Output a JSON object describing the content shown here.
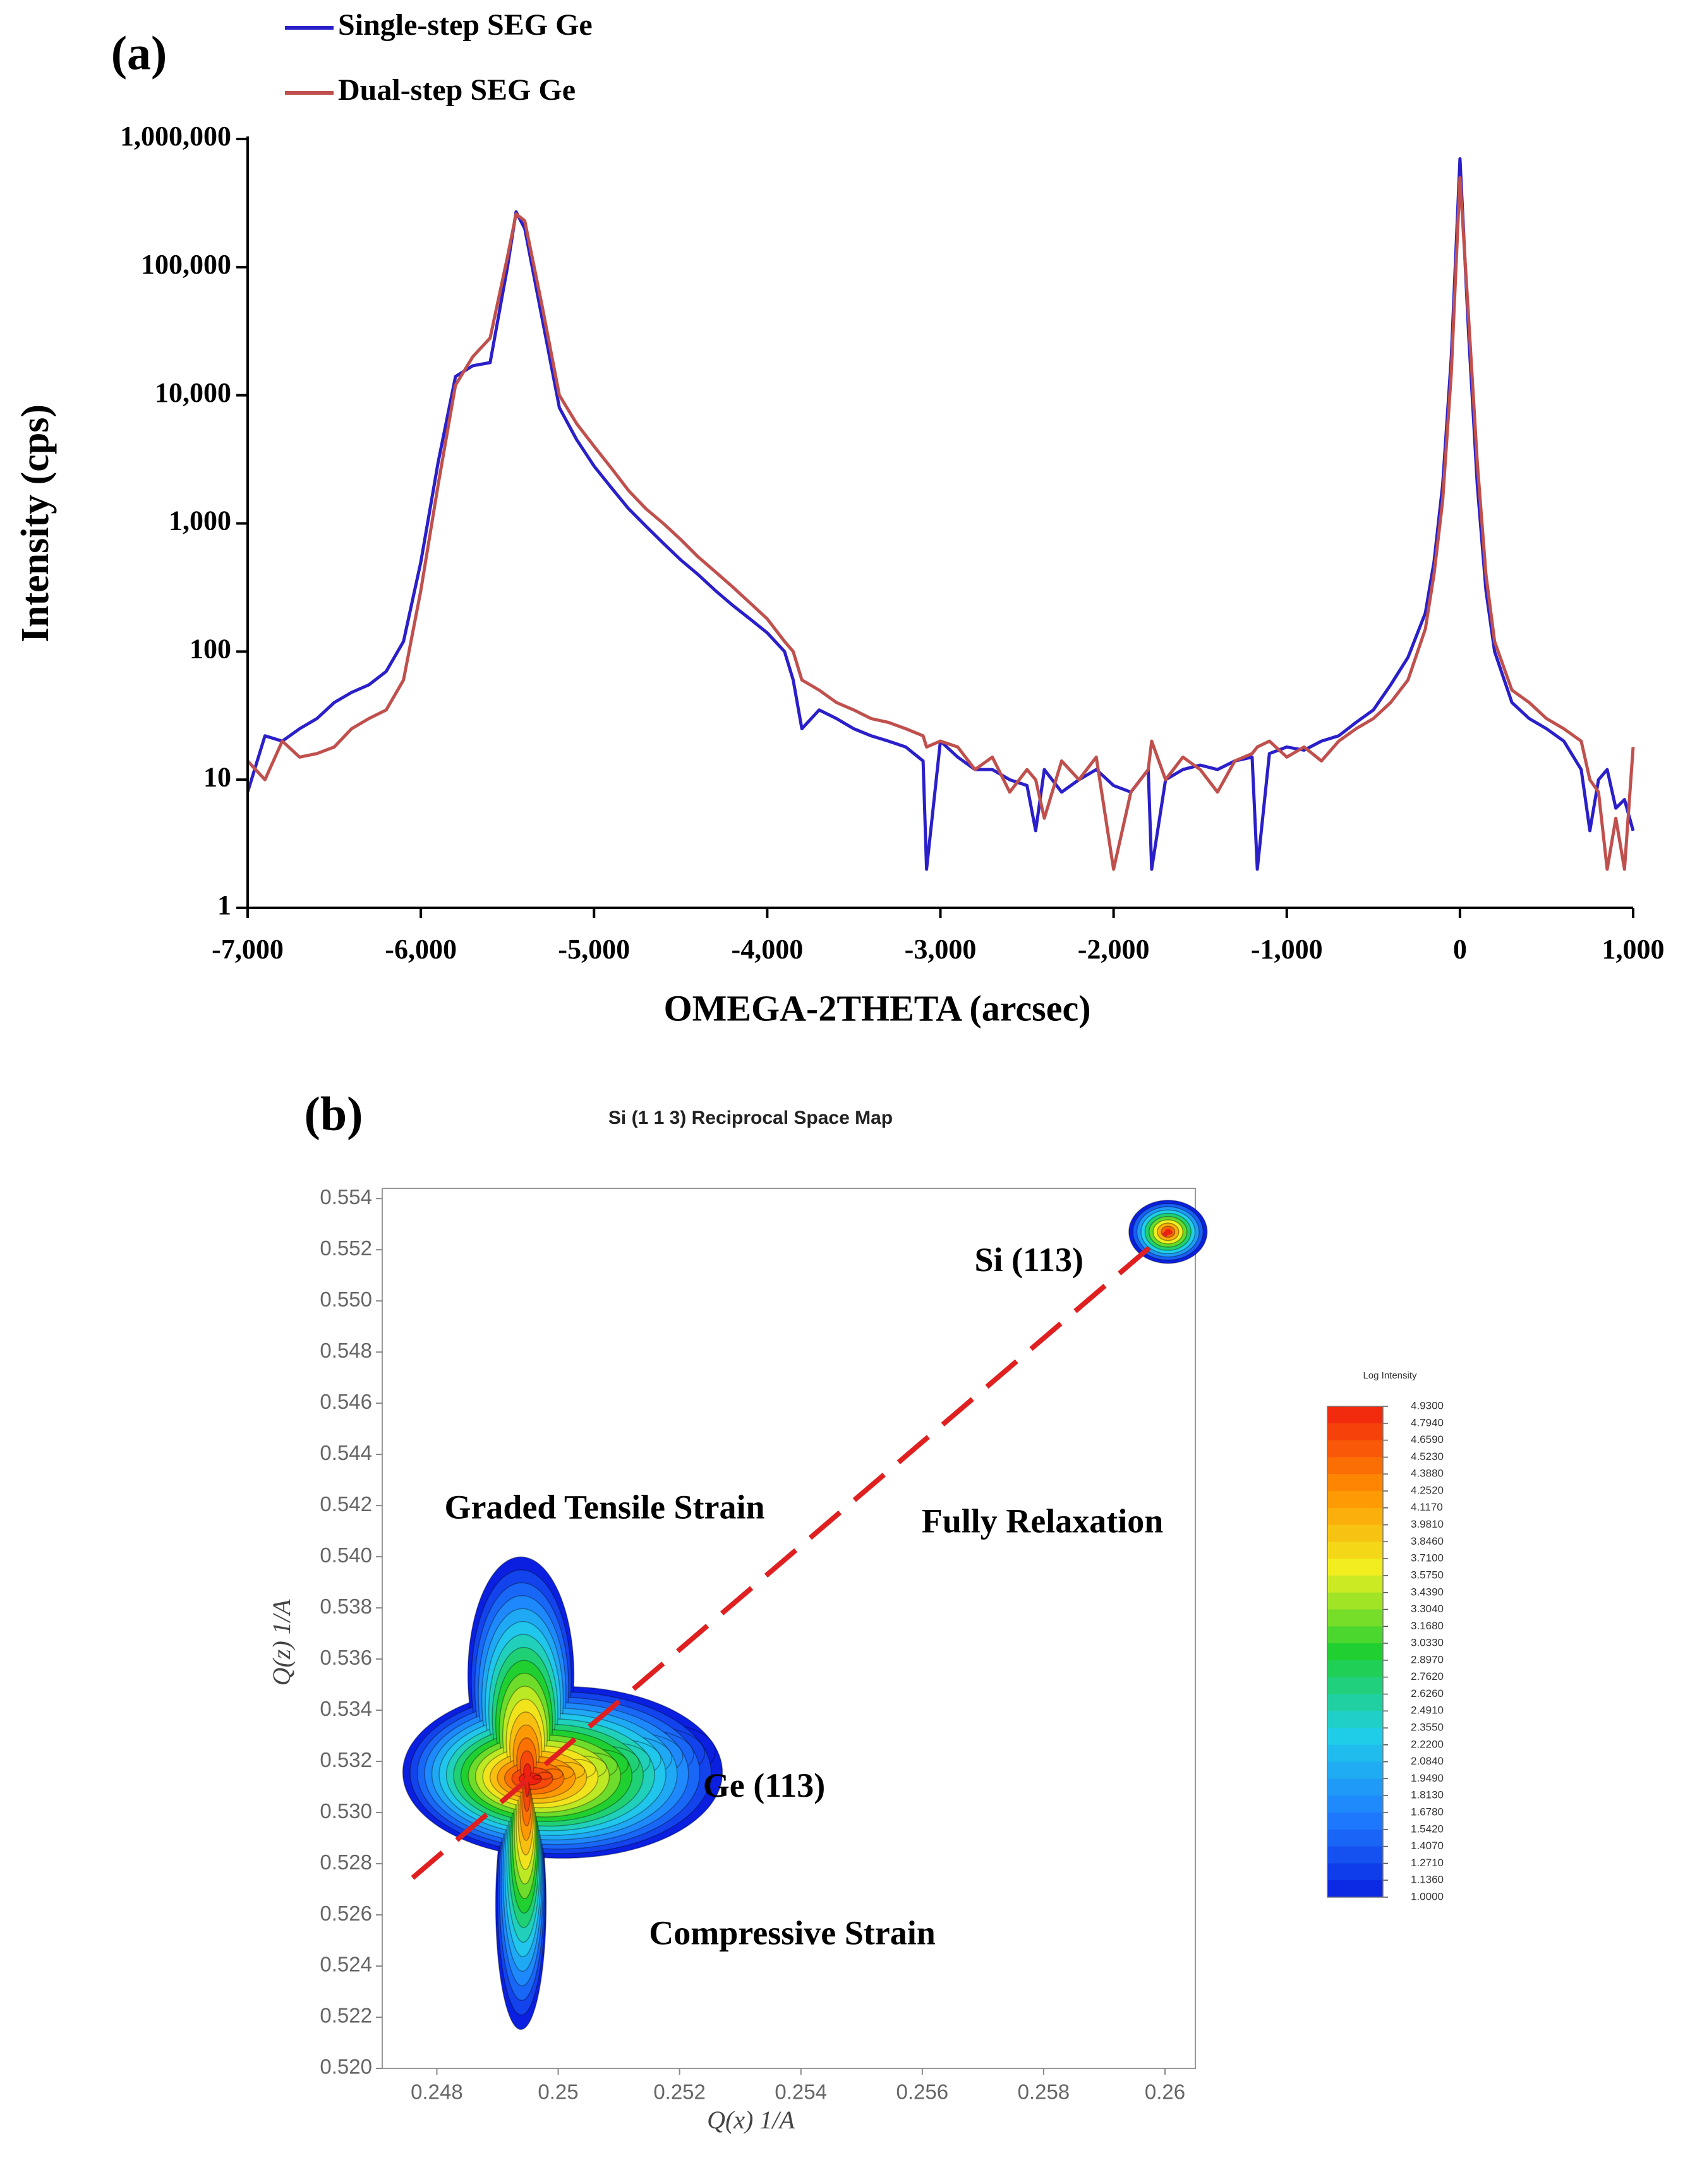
{
  "chart_data": [
    {
      "type": "line",
      "panel_label": "(a)",
      "xlabel": "OMEGA-2THETA (arcsec)",
      "ylabel": "Intensity (cps)",
      "log_y": true,
      "legend": "top-left",
      "xlim": [
        -7000,
        1000
      ],
      "xticks": [
        {
          "value": -7000,
          "label": "-7,000"
        },
        {
          "value": -6000,
          "label": "-6,000"
        },
        {
          "value": -5000,
          "label": "-5,000"
        },
        {
          "value": -4000,
          "label": "-4,000"
        },
        {
          "value": -3000,
          "label": "-3,000"
        },
        {
          "value": -2000,
          "label": "-2,000"
        },
        {
          "value": -1000,
          "label": "-1,000"
        },
        0,
        {
          "value": 1000,
          "label": "1,000"
        }
      ],
      "ylim": [
        1,
        1000000
      ],
      "yticks": [
        1,
        10,
        100,
        {
          "value": 1000,
          "label": "1,000"
        },
        {
          "value": 10000,
          "label": "10,000"
        },
        {
          "value": 100000,
          "label": "100,000"
        },
        {
          "value": 1000000,
          "label": "1,000,000"
        }
      ],
      "x": [
        -7000,
        -6900,
        -6800,
        -6700,
        -6600,
        -6500,
        -6400,
        -6300,
        -6200,
        -6100,
        -6000,
        -5900,
        -5800,
        -5700,
        -5600,
        -5500,
        -5450,
        -5400,
        -5300,
        -5200,
        -5100,
        -5000,
        -4900,
        -4800,
        -4700,
        -4600,
        -4500,
        -4400,
        -4300,
        -4200,
        -4100,
        -4000,
        -3900,
        -3850,
        -3800,
        -3700,
        -3600,
        -3500,
        -3400,
        -3300,
        -3200,
        -3100,
        -3080,
        -3000,
        -2900,
        -2800,
        -2700,
        -2600,
        -2500,
        -2450,
        -2400,
        -2300,
        -2200,
        -2100,
        -2000,
        -1900,
        -1800,
        -1780,
        -1700,
        -1600,
        -1500,
        -1400,
        -1300,
        -1200,
        -1170,
        -1100,
        -1000,
        -900,
        -800,
        -700,
        -600,
        -500,
        -400,
        -300,
        -200,
        -150,
        -100,
        -50,
        0,
        50,
        100,
        150,
        200,
        300,
        400,
        500,
        600,
        700,
        750,
        800,
        850,
        900,
        950,
        1000
      ],
      "series": [
        {
          "name": "Single-step SEG Ge",
          "color": "#2a1fc9",
          "values": [
            8,
            22,
            20,
            25,
            30,
            40,
            48,
            55,
            70,
            120,
            500,
            3000,
            14000,
            17000,
            18000,
            100000,
            270000,
            200000,
            40000,
            8000,
            4500,
            2800,
            1900,
            1300,
            950,
            700,
            520,
            400,
            300,
            230,
            180,
            140,
            100,
            60,
            25,
            35,
            30,
            25,
            22,
            20,
            18,
            14,
            2,
            20,
            15,
            12,
            12,
            10,
            9,
            4,
            12,
            8,
            10,
            12,
            9,
            8,
            12,
            2,
            10,
            12,
            13,
            12,
            14,
            15,
            2,
            16,
            18,
            17,
            20,
            22,
            28,
            35,
            55,
            90,
            200,
            500,
            2000,
            20000,
            700000,
            30000,
            2000,
            300,
            100,
            40,
            30,
            25,
            20,
            12,
            4,
            10,
            12,
            6,
            7,
            4
          ]
        },
        {
          "name": "Dual-step SEG Ge",
          "color": "#c0504d",
          "values": [
            14,
            10,
            20,
            15,
            16,
            18,
            25,
            30,
            35,
            60,
            300,
            2000,
            12000,
            20000,
            28000,
            120000,
            260000,
            230000,
            50000,
            10000,
            6000,
            4000,
            2700,
            1800,
            1300,
            1000,
            750,
            550,
            420,
            320,
            240,
            180,
            120,
            100,
            60,
            50,
            40,
            35,
            30,
            28,
            25,
            22,
            18,
            20,
            18,
            12,
            15,
            8,
            12,
            10,
            5,
            14,
            10,
            15,
            2,
            8,
            12,
            20,
            10,
            15,
            12,
            8,
            14,
            16,
            18,
            20,
            15,
            18,
            14,
            20,
            25,
            30,
            40,
            60,
            150,
            400,
            1500,
            15000,
            500000,
            40000,
            3000,
            400,
            120,
            50,
            40,
            30,
            25,
            20,
            10,
            8,
            2,
            5,
            2,
            18
          ]
        }
      ]
    },
    {
      "type": "contour",
      "panel_label": "(b)",
      "title": "Si (1 1 3) Reciprocal Space Map",
      "xlabel": "Q(x)  1/A",
      "ylabel": "Q(z)  1/A",
      "xlim": [
        0.2471,
        0.2605
      ],
      "xticks": [
        0.248,
        0.25,
        0.252,
        0.254,
        0.256,
        0.258,
        0.26
      ],
      "xtick_labels_note_free": null,
      "ylim": [
        0.52,
        0.5544
      ],
      "yticks": [
        {
          "value": 0.52,
          "label": "0.520"
        },
        0.522,
        0.524,
        0.526,
        0.528,
        {
          "value": 0.53,
          "label": "0.530"
        },
        0.532,
        0.534,
        0.536,
        0.538,
        {
          "value": 0.54,
          "label": "0.540"
        },
        0.542,
        0.544,
        0.546,
        0.548,
        {
          "value": 0.55,
          "label": "0.550"
        },
        0.552,
        0.554
      ],
      "peaks": [
        {
          "name": "Si (113)",
          "qx": 0.26005,
          "qz": 0.5527
        },
        {
          "name": "Ge (113)",
          "qx": 0.2495,
          "qz": 0.5313
        }
      ],
      "annotations": [
        "Graded Tensile Strain",
        "Fully Relaxation",
        "Compressive Strain"
      ],
      "relaxation_line_color": "#e02020",
      "colormap": [
        "#0a1fe0",
        "#1e7fff",
        "#20d0e8",
        "#20d030",
        "#f0f020",
        "#ff8c00",
        "#f02010"
      ],
      "colorbar": {
        "title": "Log Intensity",
        "ticks": [
          {
            "value": 4.93,
            "label": "4.9300"
          },
          {
            "value": 4.794,
            "label": "4.7940"
          },
          {
            "value": 4.659,
            "label": "4.6590"
          },
          {
            "value": 4.523,
            "label": "4.5230"
          },
          {
            "value": 4.388,
            "label": "4.3880"
          },
          {
            "value": 4.252,
            "label": "4.2520"
          },
          {
            "value": 4.117,
            "label": "4.1170"
          },
          {
            "value": 3.981,
            "label": "3.9810"
          },
          {
            "value": 3.846,
            "label": "3.8460"
          },
          {
            "value": 3.71,
            "label": "3.7100"
          },
          {
            "value": 3.575,
            "label": "3.5750"
          },
          {
            "value": 3.439,
            "label": "3.4390"
          },
          {
            "value": 3.304,
            "label": "3.3040"
          },
          {
            "value": 3.168,
            "label": "3.1680"
          },
          {
            "value": 3.033,
            "label": "3.0330"
          },
          {
            "value": 2.897,
            "label": "2.8970"
          },
          {
            "value": 2.762,
            "label": "2.7620"
          },
          {
            "value": 2.626,
            "label": "2.6260"
          },
          {
            "value": 2.491,
            "label": "2.4910"
          },
          {
            "value": 2.355,
            "label": "2.3550"
          },
          {
            "value": 2.22,
            "label": "2.2200"
          },
          {
            "value": 2.084,
            "label": "2.0840"
          },
          {
            "value": 1.949,
            "label": "1.9490"
          },
          {
            "value": 1.813,
            "label": "1.8130"
          },
          {
            "value": 1.678,
            "label": "1.6780"
          },
          {
            "value": 1.542,
            "label": "1.5420"
          },
          {
            "value": 1.407,
            "label": "1.4070"
          },
          {
            "value": 1.271,
            "label": "1.2710"
          },
          {
            "value": 1.136,
            "label": "1.1360"
          },
          {
            "value": 1.0,
            "label": "1.0000"
          }
        ]
      }
    }
  ]
}
